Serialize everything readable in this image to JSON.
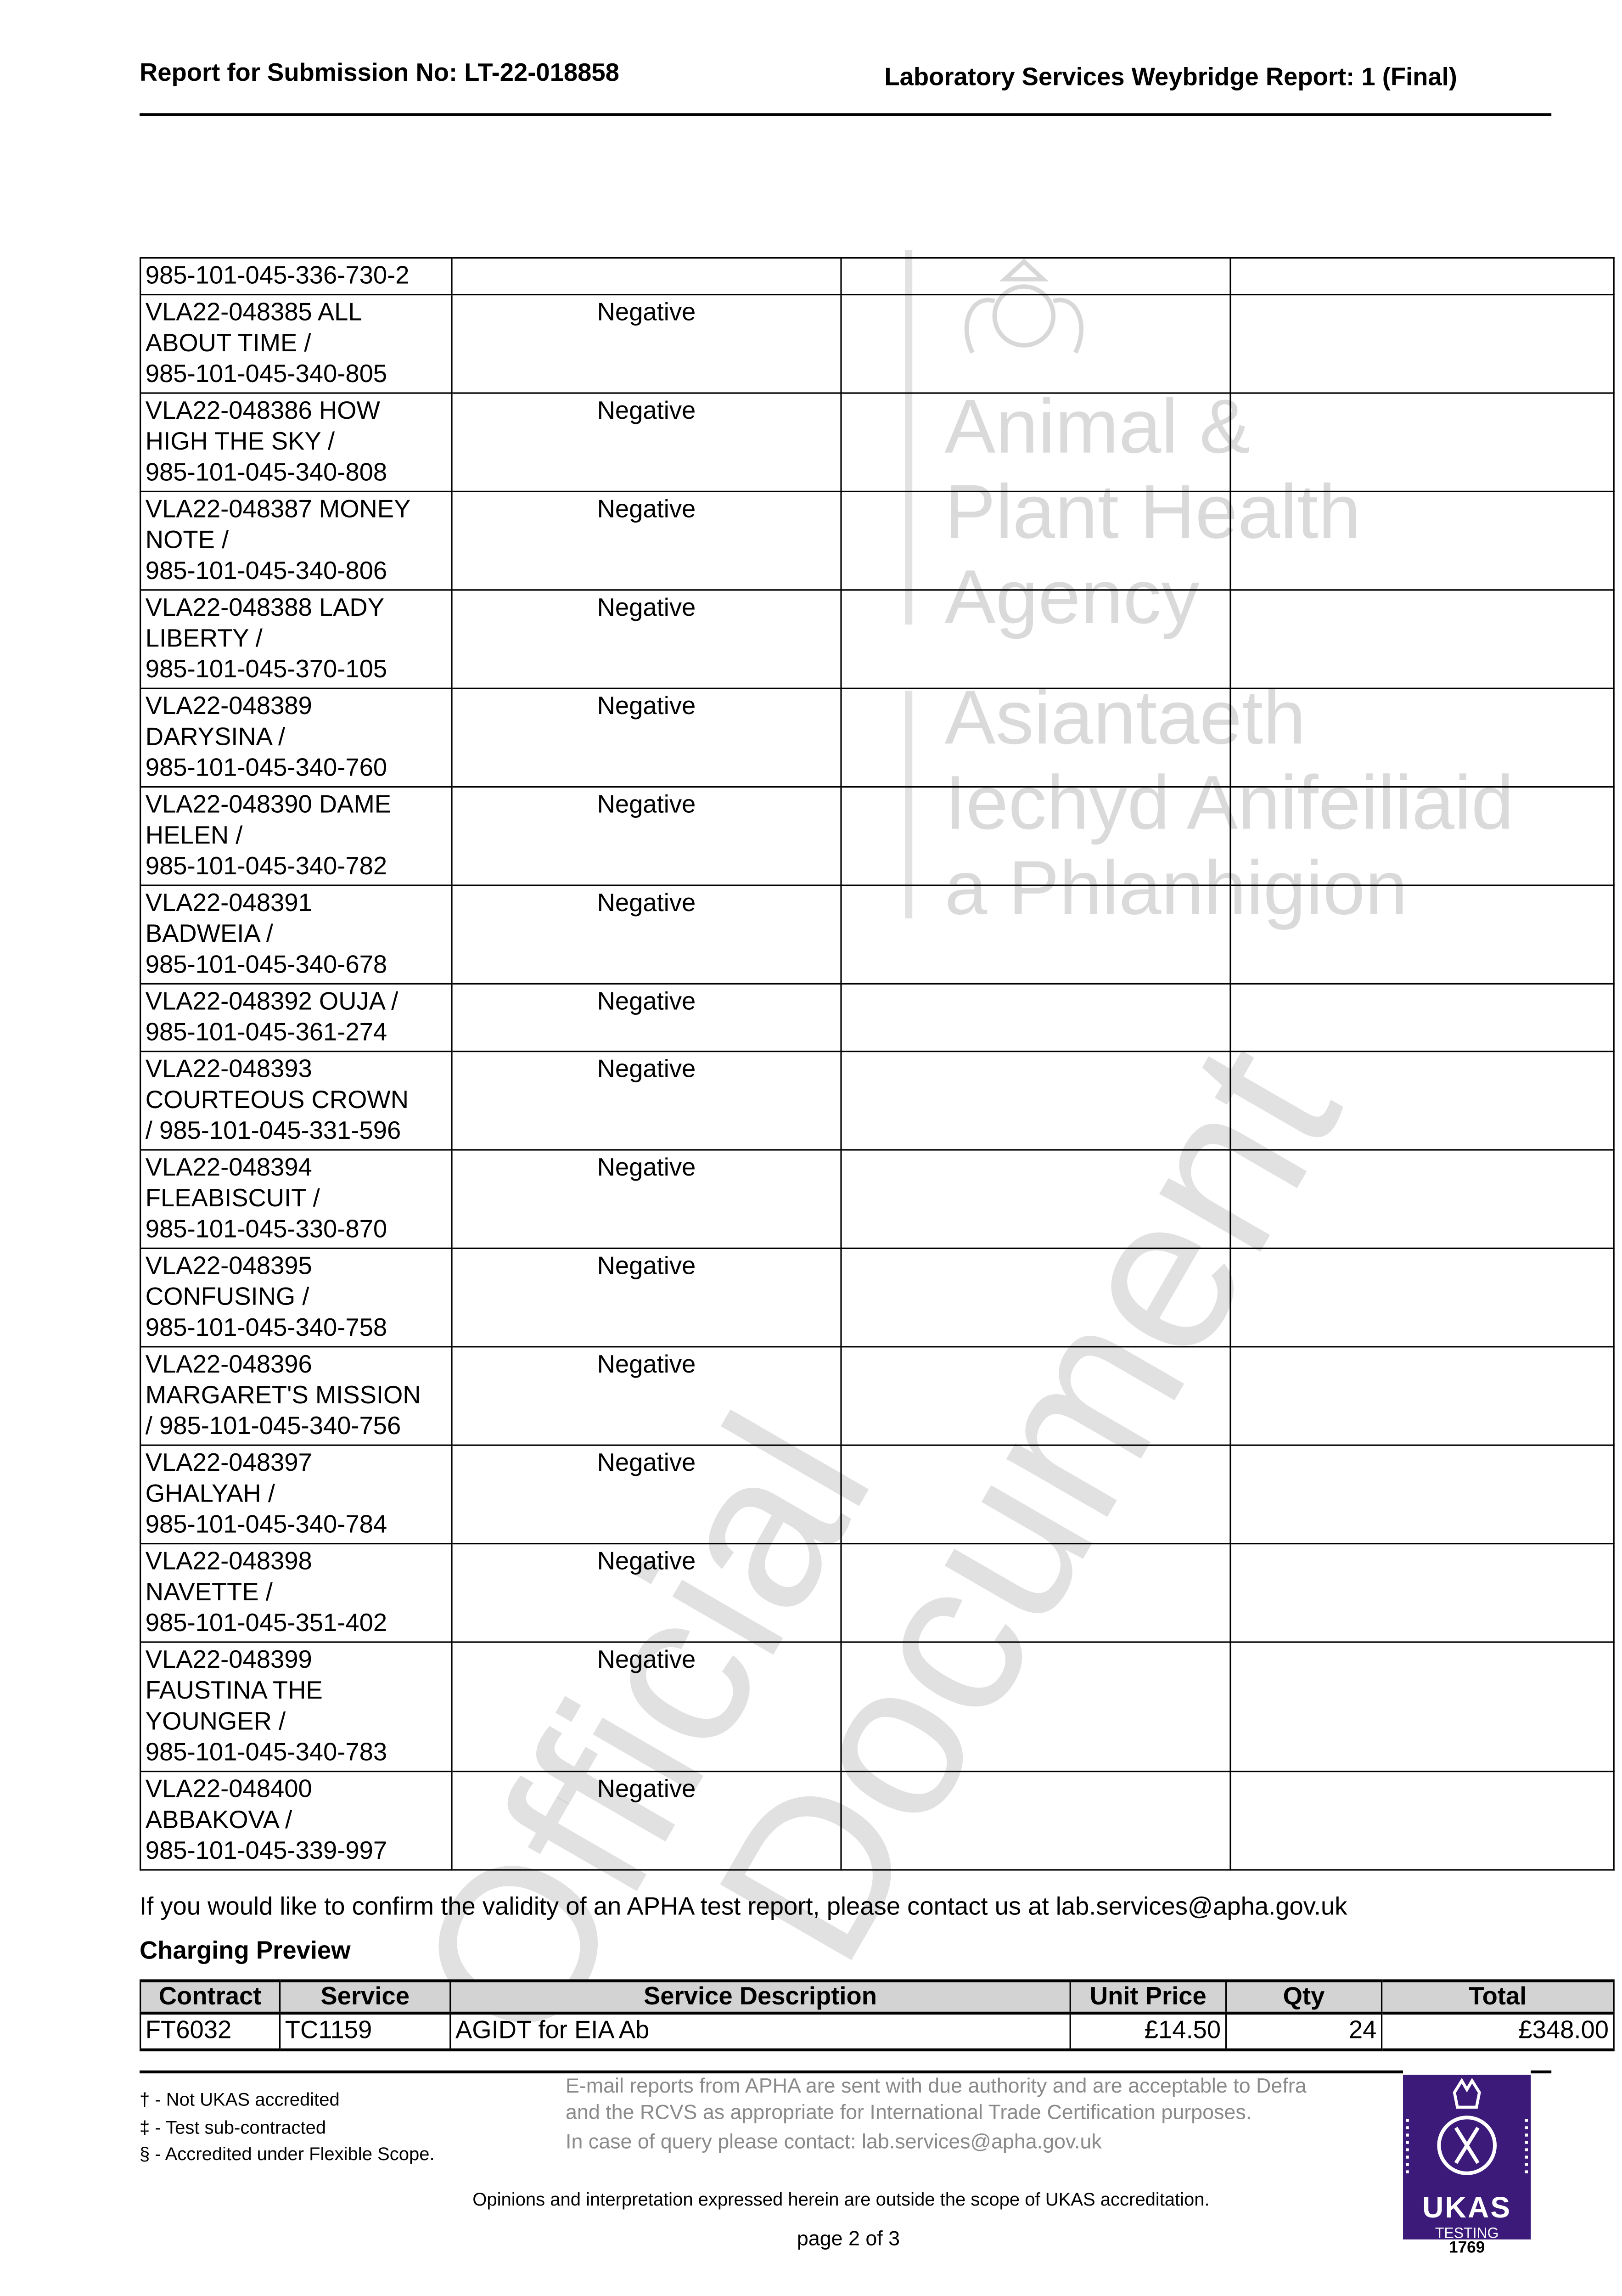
{
  "header": {
    "left": "Report for Submission No: LT-22-018858",
    "right": "Laboratory Services Weybridge Report: 1 (Final)"
  },
  "watermark": {
    "agency_en": [
      "Animal &",
      "Plant Health",
      "Agency"
    ],
    "agency_cy": [
      "Asiantaeth",
      "Iechyd Anifeiliaid",
      "a Phlanhigion"
    ],
    "stamp": [
      "Official",
      "Document"
    ]
  },
  "results": {
    "rows": [
      {
        "sample": [
          "985-101-045-336-730-2"
        ],
        "result": ""
      },
      {
        "sample": [
          "VLA22-048385 ALL",
          "ABOUT TIME /",
          "985-101-045-340-805"
        ],
        "result": "Negative"
      },
      {
        "sample": [
          "VLA22-048386 HOW",
          "HIGH THE SKY /",
          "985-101-045-340-808"
        ],
        "result": "Negative"
      },
      {
        "sample": [
          "VLA22-048387 MONEY",
          "NOTE /",
          "985-101-045-340-806"
        ],
        "result": "Negative"
      },
      {
        "sample": [
          "VLA22-048388 LADY",
          "LIBERTY /",
          "985-101-045-370-105"
        ],
        "result": "Negative"
      },
      {
        "sample": [
          "VLA22-048389",
          "DARYSINA /",
          "985-101-045-340-760"
        ],
        "result": "Negative"
      },
      {
        "sample": [
          "VLA22-048390 DAME",
          "HELEN /",
          "985-101-045-340-782"
        ],
        "result": "Negative"
      },
      {
        "sample": [
          "VLA22-048391",
          "BADWEIA /",
          "985-101-045-340-678"
        ],
        "result": "Negative"
      },
      {
        "sample": [
          "VLA22-048392 OUJA /",
          "985-101-045-361-274"
        ],
        "result": "Negative"
      },
      {
        "sample": [
          "VLA22-048393",
          "COURTEOUS CROWN",
          "/ 985-101-045-331-596"
        ],
        "result": "Negative"
      },
      {
        "sample": [
          "VLA22-048394",
          "FLEABISCUIT /",
          "985-101-045-330-870"
        ],
        "result": "Negative"
      },
      {
        "sample": [
          "VLA22-048395",
          "CONFUSING /",
          "985-101-045-340-758"
        ],
        "result": "Negative"
      },
      {
        "sample": [
          "VLA22-048396",
          "MARGARET'S MISSION",
          "/ 985-101-045-340-756"
        ],
        "result": "Negative"
      },
      {
        "sample": [
          "VLA22-048397",
          "GHALYAH /",
          "985-101-045-340-784"
        ],
        "result": "Negative"
      },
      {
        "sample": [
          "VLA22-048398",
          "NAVETTE /",
          "985-101-045-351-402"
        ],
        "result": "Negative"
      },
      {
        "sample": [
          "VLA22-048399",
          "FAUSTINA THE",
          "YOUNGER /",
          "985-101-045-340-783"
        ],
        "result": "Negative"
      },
      {
        "sample": [
          "VLA22-048400",
          "ABBAKOVA /",
          "985-101-045-339-997"
        ],
        "result": "Negative"
      }
    ]
  },
  "validity_note": "If you would like to confirm the validity of an APHA test report, please contact us at lab.services@apha.gov.uk",
  "charging": {
    "title": "Charging Preview",
    "headers": [
      "Contract",
      "Service",
      "Service Description",
      "Unit Price",
      "Qty",
      "Total"
    ],
    "rows": [
      [
        "FT6032",
        "TC1159",
        "AGIDT for EIA Ab",
        "£14.50",
        "24",
        "£348.00"
      ]
    ]
  },
  "footer": {
    "notes": [
      "† - Not UKAS accredited",
      "‡ - Test sub-contracted",
      "§ - Accredited under Flexible Scope."
    ],
    "email_note": "E-mail reports from APHA are sent with due authority and are acceptable to Defra and the RCVS as appropriate for International Trade Certification purposes.",
    "query_note": "In case of query please contact: lab.services@apha.gov.uk",
    "opinion": "Opinions and interpretation expressed herein are outside the scope of UKAS accreditation.",
    "page": "page 2 of 3",
    "ukas": {
      "name": "UKAS",
      "sub": "TESTING",
      "number": "1769",
      "color": "#3b1a7a"
    }
  }
}
